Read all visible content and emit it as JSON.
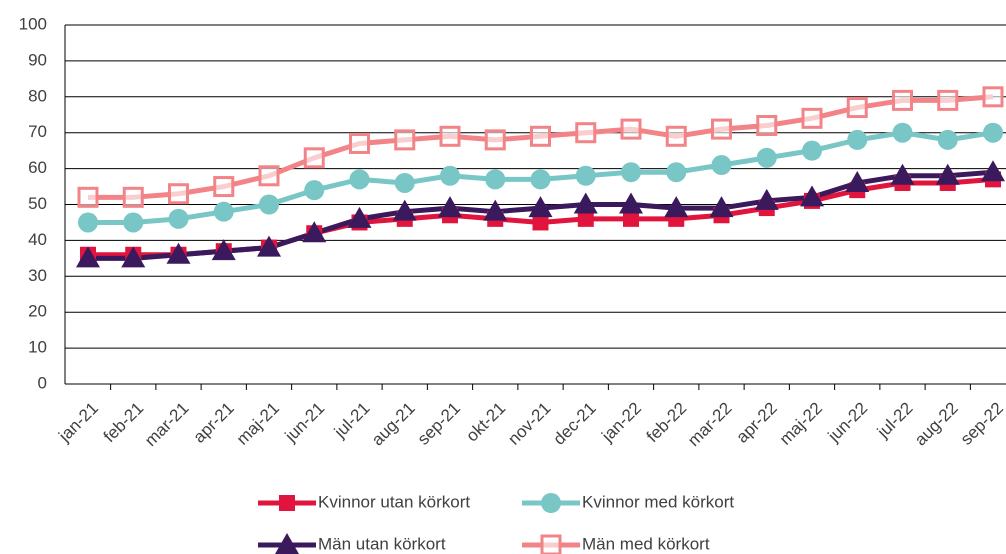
{
  "chart_data": {
    "type": "line",
    "categories": [
      "jan-21",
      "feb-21",
      "mar-21",
      "apr-21",
      "maj-21",
      "jun-21",
      "jul-21",
      "aug-21",
      "sep-21",
      "okt-21",
      "nov-21",
      "dec-21",
      "jan-22",
      "feb-22",
      "mar-22",
      "apr-22",
      "maj-22",
      "jun-22",
      "jul-22",
      "aug-22",
      "sep-22"
    ],
    "series": [
      {
        "name": "Kvinnor utan körkort",
        "color": "#e0143c",
        "marker": "square",
        "values": [
          36,
          36,
          36,
          37,
          38,
          42,
          45,
          46,
          47,
          46,
          45,
          46,
          46,
          46,
          47,
          49,
          51,
          54,
          56,
          56,
          57
        ]
      },
      {
        "name": "Kvinnor med körkort",
        "color": "#78c6c6",
        "marker": "circle",
        "values": [
          45,
          45,
          46,
          48,
          50,
          54,
          57,
          56,
          58,
          57,
          57,
          58,
          59,
          59,
          61,
          63,
          65,
          68,
          70,
          68,
          70
        ]
      },
      {
        "name": "Män utan körkort",
        "color": "#3a1a5c",
        "marker": "triangle",
        "values": [
          35,
          35,
          36,
          37,
          38,
          42,
          46,
          48,
          49,
          48,
          49,
          50,
          50,
          49,
          49,
          51,
          52,
          56,
          58,
          58,
          59
        ]
      },
      {
        "name": "Män med körkort",
        "color": "#f28488",
        "marker": "open-square",
        "values": [
          52,
          52,
          53,
          55,
          58,
          63,
          67,
          68,
          69,
          68,
          69,
          70,
          71,
          69,
          71,
          72,
          74,
          77,
          79,
          79,
          80
        ]
      }
    ],
    "ylim": [
      0,
      100
    ],
    "yticks": [
      0,
      10,
      20,
      30,
      40,
      50,
      60,
      70,
      80,
      90,
      100
    ],
    "grid": true,
    "legend": "bottom"
  }
}
